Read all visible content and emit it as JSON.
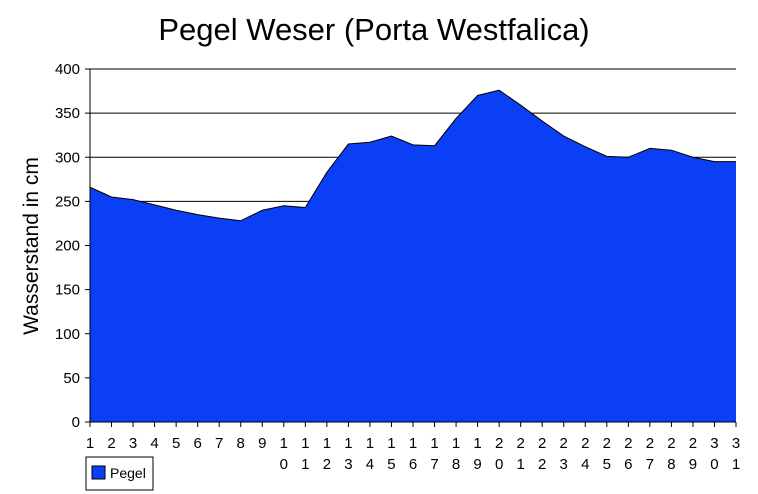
{
  "chart_data": {
    "type": "area",
    "title": "Pegel Weser (Porta Westfalica)",
    "xlabel": "",
    "ylabel": "Wasserstand in cm",
    "ylim": [
      0,
      400
    ],
    "yticks": [
      0,
      50,
      100,
      150,
      200,
      250,
      300,
      350,
      400
    ],
    "grid": true,
    "legend": "bottom-left",
    "categories": [
      "1",
      "2",
      "3",
      "4",
      "5",
      "6",
      "7",
      "8",
      "9",
      "10",
      "11",
      "12",
      "13",
      "14",
      "15",
      "16",
      "17",
      "18",
      "19",
      "20",
      "21",
      "22",
      "23",
      "24",
      "25",
      "26",
      "27",
      "28",
      "29",
      "30",
      "31"
    ],
    "series": [
      {
        "name": "Pegel",
        "color": "#0a3ff5",
        "values": [
          266,
          255,
          252,
          246,
          240,
          235,
          231,
          228,
          240,
          245,
          243,
          283,
          315,
          317,
          324,
          314,
          313,
          344,
          370,
          376,
          359,
          341,
          324,
          312,
          301,
          300,
          310,
          308,
          300,
          295,
          295
        ]
      }
    ]
  }
}
